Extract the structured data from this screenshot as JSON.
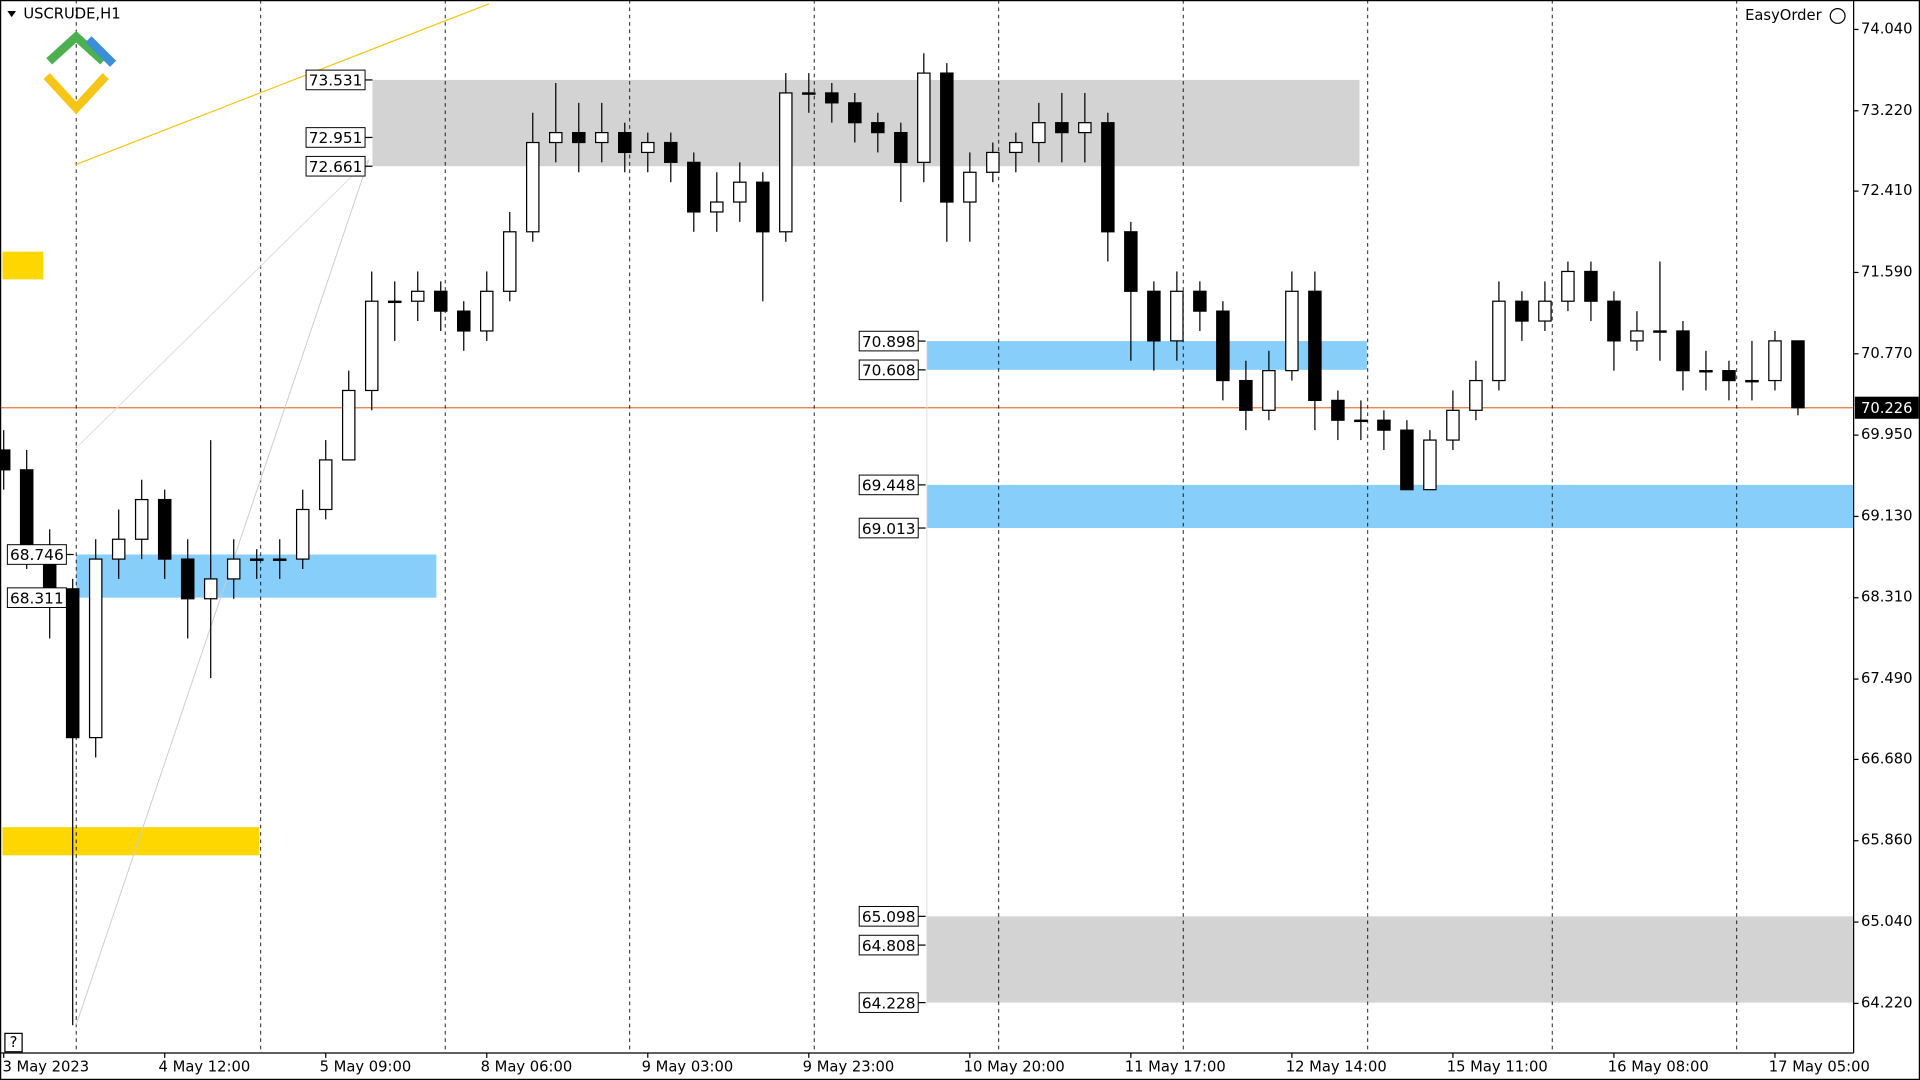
{
  "chart_data": {
    "type": "candlestick",
    "title": "USCRUDE,H1",
    "panel_label": "EasyOrder",
    "help_label": "?",
    "categories": [
      "3 May 2023",
      null,
      null,
      null,
      null,
      null,
      null,
      "4 May 12:00",
      null,
      null,
      null,
      null,
      null,
      null,
      "5 May 09:00",
      null,
      null,
      null,
      null,
      null,
      null,
      "8 May 06:00",
      null,
      null,
      null,
      null,
      null,
      null,
      "9 May 03:00",
      null,
      null,
      null,
      null,
      null,
      null,
      "9 May 23:00",
      null,
      null,
      null,
      null,
      null,
      null,
      "10 May 20:00",
      null,
      null,
      null,
      null,
      null,
      null,
      "11 May 17:00",
      null,
      null,
      null,
      null,
      null,
      null,
      "12 May 14:00",
      null,
      null,
      null,
      null,
      null,
      null,
      "15 May 11:00",
      null,
      null,
      null,
      null,
      null,
      null,
      "16 May 08:00",
      null,
      null,
      null,
      null,
      null,
      null,
      "17 May 05:00",
      null
    ],
    "open": [
      69.8,
      69.6,
      68.8,
      68.4,
      66.9,
      68.7,
      68.9,
      69.3,
      68.7,
      68.3,
      68.5,
      68.7,
      68.7,
      68.7,
      69.2,
      69.7,
      70.4,
      71.3,
      71.3,
      71.4,
      71.2,
      71.0,
      71.4,
      72.0,
      72.9,
      73.0,
      72.9,
      73.0,
      72.8,
      72.9,
      72.7,
      72.2,
      72.3,
      72.5,
      72.0,
      73.4,
      73.4,
      73.3,
      73.1,
      73.0,
      72.7,
      73.6,
      72.3,
      72.6,
      72.8,
      72.9,
      73.1,
      73.0,
      73.1,
      72.0,
      71.4,
      70.9,
      71.4,
      71.2,
      70.5,
      70.2,
      70.6,
      71.4,
      70.3,
      70.1,
      70.1,
      70.0,
      69.4,
      69.9,
      70.2,
      70.5,
      71.3,
      71.1,
      71.3,
      71.6,
      71.3,
      70.9,
      71.0,
      71.0,
      70.6,
      70.6,
      70.5,
      70.5,
      70.9
    ],
    "high": [
      70.0,
      69.8,
      69.0,
      68.5,
      68.9,
      69.2,
      69.5,
      69.4,
      68.9,
      69.9,
      68.9,
      68.8,
      68.9,
      69.4,
      69.9,
      70.6,
      71.6,
      71.5,
      71.6,
      71.5,
      71.3,
      71.6,
      72.2,
      73.2,
      73.5,
      73.3,
      73.3,
      73.1,
      73.0,
      73.0,
      72.8,
      72.6,
      72.7,
      72.6,
      73.6,
      73.6,
      73.5,
      73.4,
      73.2,
      73.1,
      73.8,
      73.7,
      72.8,
      72.9,
      73.0,
      73.3,
      73.4,
      73.4,
      73.2,
      72.1,
      71.5,
      71.6,
      71.5,
      71.3,
      70.7,
      70.8,
      71.6,
      71.6,
      70.4,
      70.3,
      70.2,
      70.1,
      70.0,
      70.4,
      70.7,
      71.5,
      71.4,
      71.5,
      71.7,
      71.7,
      71.4,
      71.2,
      71.7,
      71.1,
      70.8,
      70.7,
      70.9,
      71.0,
      70.9
    ],
    "low": [
      69.4,
      68.6,
      67.9,
      64.0,
      66.7,
      68.5,
      68.7,
      68.5,
      67.9,
      67.5,
      68.3,
      68.5,
      68.5,
      68.6,
      69.1,
      69.8,
      70.2,
      70.9,
      71.1,
      71.0,
      70.8,
      70.9,
      71.3,
      71.9,
      72.7,
      72.6,
      72.7,
      72.6,
      72.6,
      72.5,
      72.0,
      72.0,
      72.1,
      71.3,
      71.9,
      73.2,
      73.1,
      72.9,
      72.8,
      72.3,
      72.5,
      71.9,
      71.9,
      72.5,
      72.6,
      72.7,
      72.7,
      72.7,
      71.7,
      70.7,
      70.6,
      70.7,
      71.0,
      70.3,
      70.0,
      70.1,
      70.5,
      70.0,
      69.9,
      69.9,
      69.8,
      69.4,
      69.4,
      69.8,
      70.1,
      70.4,
      70.9,
      71.0,
      71.2,
      71.1,
      70.6,
      70.8,
      70.7,
      70.4,
      70.4,
      70.3,
      70.3,
      70.4,
      70.15
    ],
    "close": [
      69.6,
      68.8,
      68.4,
      66.9,
      68.7,
      68.9,
      69.3,
      68.7,
      68.3,
      68.5,
      68.7,
      68.7,
      68.7,
      69.2,
      69.7,
      70.4,
      71.3,
      71.3,
      71.4,
      71.2,
      71.0,
      71.4,
      72.0,
      72.9,
      73.0,
      72.9,
      73.0,
      72.8,
      72.9,
      72.7,
      72.2,
      72.3,
      72.5,
      72.0,
      73.4,
      73.4,
      73.3,
      73.1,
      73.0,
      72.7,
      73.6,
      72.3,
      72.6,
      72.8,
      72.9,
      73.1,
      73.0,
      73.1,
      72.0,
      71.4,
      70.9,
      71.4,
      71.2,
      70.5,
      70.2,
      70.6,
      71.4,
      70.3,
      70.1,
      70.1,
      70.0,
      69.4,
      69.9,
      70.2,
      70.5,
      71.3,
      71.1,
      71.3,
      71.6,
      71.3,
      70.9,
      71.0,
      71.0,
      70.6,
      70.6,
      70.5,
      70.5,
      70.9,
      70.226
    ],
    "up_color": "#ffffff",
    "down_color": "#000000",
    "ylim": [
      63.72,
      74.337
    ],
    "yticks": [
      {
        "value": 74.04,
        "label": "74.040"
      },
      {
        "value": 73.22,
        "label": "73.220"
      },
      {
        "value": 72.41,
        "label": "72.410"
      },
      {
        "value": 71.59,
        "label": "71.590"
      },
      {
        "value": 70.77,
        "label": "70.770"
      },
      {
        "value": 69.95,
        "label": "69.950"
      },
      {
        "value": 69.13,
        "label": "69.130"
      },
      {
        "value": 68.31,
        "label": "68.310"
      },
      {
        "value": 67.49,
        "label": "67.490"
      },
      {
        "value": 66.68,
        "label": "66.680"
      },
      {
        "value": 65.86,
        "label": "65.860"
      },
      {
        "value": 65.04,
        "label": "65.040"
      },
      {
        "value": 64.22,
        "label": "64.220"
      }
    ],
    "zones": [
      {
        "levels": [
          73.531,
          72.951,
          72.661
        ],
        "color": "#d3d3d3"
      },
      {
        "levels": [
          70.898,
          70.608
        ],
        "color": "#87cefa"
      },
      {
        "levels": [
          69.448,
          69.013
        ],
        "color": "#87cefa"
      },
      {
        "levels": [
          68.746,
          68.311
        ],
        "color": "#87cefa"
      },
      {
        "levels": [
          65.098,
          64.808,
          64.228
        ],
        "color": "#d3d3d3"
      }
    ],
    "marker_zones": [
      {
        "high": 71.8,
        "low": 71.52,
        "color": "#ffd700"
      },
      {
        "high": 65.997,
        "low": 65.713,
        "color": "#ffd700"
      }
    ],
    "current_price": 70.226,
    "current_price_color": "#e8763c"
  }
}
